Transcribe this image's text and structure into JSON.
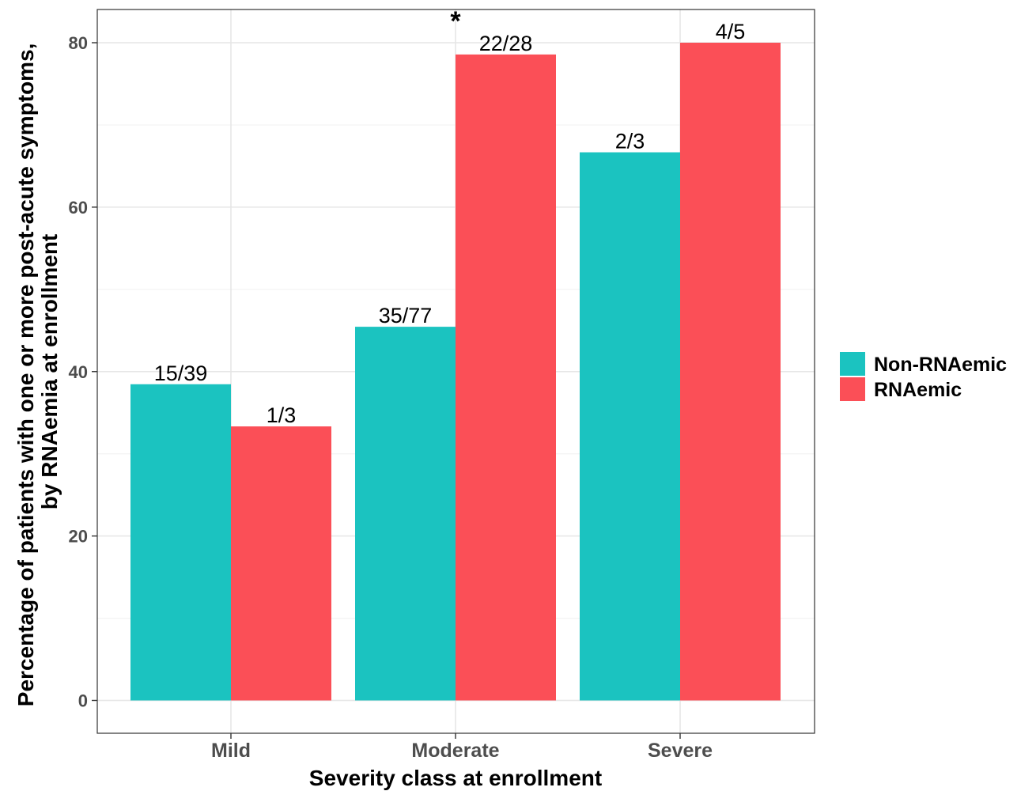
{
  "chart_data": {
    "type": "bar",
    "categories": [
      "Mild",
      "Moderate",
      "Severe"
    ],
    "series": [
      {
        "name": "Non-RNAemic",
        "color": "#1BC3C0",
        "values": [
          38.46,
          45.45,
          66.67
        ],
        "labels": [
          "15/39",
          "35/77",
          "2/3"
        ]
      },
      {
        "name": "RNAemic",
        "color": "#FB4F57",
        "values": [
          33.33,
          78.57,
          80.0
        ],
        "labels": [
          "1/3",
          "22/28",
          "4/5"
        ]
      }
    ],
    "annotations": [
      {
        "text": "*",
        "category": "Moderate"
      }
    ],
    "xlabel": "Severity class at enrollment",
    "ylabel_lines": [
      "Percentage of patients with one or more post-acute symptoms,",
      "by RNAemia at enrollment"
    ],
    "yticks": [
      0,
      20,
      40,
      60,
      80
    ],
    "ylim": [
      -4,
      84
    ],
    "grid": true,
    "legend_position": "right"
  }
}
